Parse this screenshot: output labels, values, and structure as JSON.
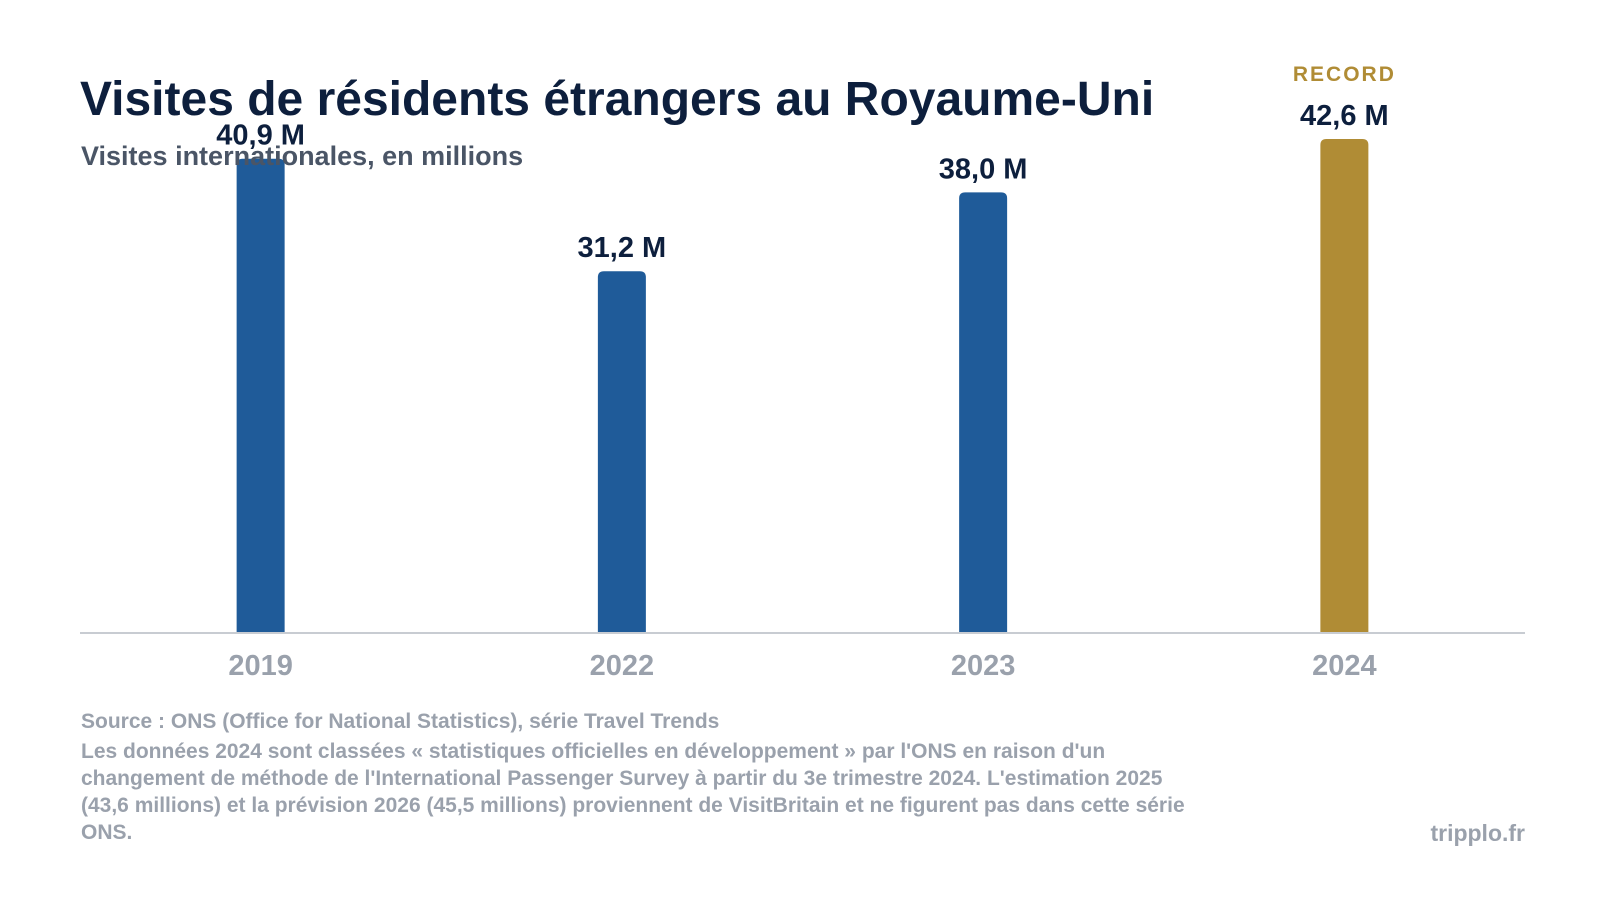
{
  "header": {
    "title": "Visites de résidents étrangers au Royaume-Uni",
    "subtitle": "Visites internationales, en millions"
  },
  "chart_data": {
    "type": "bar",
    "title": "Visites de résidents étrangers au Royaume-Uni",
    "subtitle": "Visites internationales, en millions",
    "categories": [
      "2019",
      "2022",
      "2023",
      "2024"
    ],
    "values": [
      40.9,
      31.2,
      38.0,
      42.6
    ],
    "data_labels": [
      "40,9 M",
      "31,2 M",
      "38,0 M",
      "42,6 M"
    ],
    "xlabel": "",
    "ylabel": "",
    "ylim": [
      0,
      42.6
    ],
    "grid": false,
    "legend": "none",
    "highlight": {
      "category": "2024",
      "tag": "RECORD"
    },
    "colors": {
      "default": "#1f5b99",
      "highlight": "#b08c35",
      "axis": "#c8ccd2"
    }
  },
  "footer": {
    "source": "Source : ONS (Office for National Statistics), série Travel Trends",
    "note": "Les données 2024 sont classées « statistiques officielles en développement » par l'ONS en raison d'un changement de méthode de l'International Passenger Survey à partir du 3e trimestre 2024. L'estimation 2025 (43,6 millions) et la prévision 2026 (45,5 millions) proviennent de VisitBritain et ne figurent pas dans cette série ONS.",
    "brand": "tripplo.fr"
  }
}
